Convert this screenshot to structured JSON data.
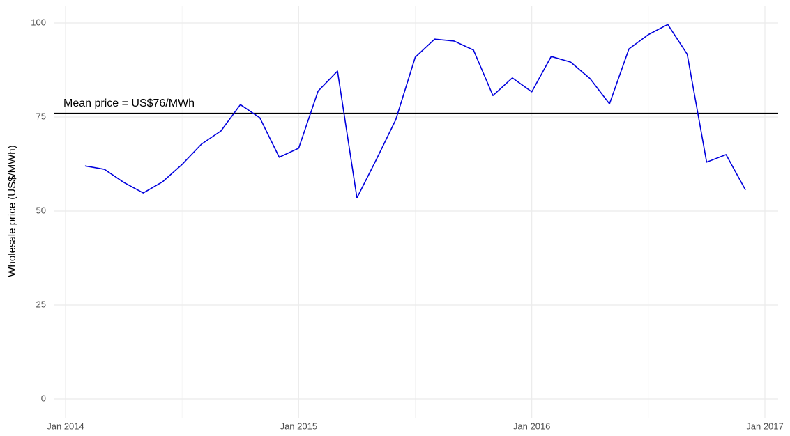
{
  "chart_data": {
    "type": "line",
    "y_label": "Wholesale price (US$/MWh)",
    "x": [
      "2014-02",
      "2014-03",
      "2014-04",
      "2014-05",
      "2014-06",
      "2014-07",
      "2014-08",
      "2014-09",
      "2014-10",
      "2014-11",
      "2014-12",
      "2015-01",
      "2015-02",
      "2015-03",
      "2015-04",
      "2015-05",
      "2015-06",
      "2015-07",
      "2015-08",
      "2015-09",
      "2015-10",
      "2015-11",
      "2015-12",
      "2016-01",
      "2016-02",
      "2016-03",
      "2016-04",
      "2016-05",
      "2016-06",
      "2016-07",
      "2016-08",
      "2016-09",
      "2016-10",
      "2016-11",
      "2016-12"
    ],
    "series": [
      {
        "color": "#0000dd",
        "values": [
          62.0,
          61.1,
          57.6,
          54.8,
          57.8,
          62.4,
          67.8,
          71.3,
          78.3,
          74.8,
          64.3,
          66.7,
          81.9,
          87.2,
          53.5,
          63.7,
          74.3,
          90.9,
          95.7,
          95.2,
          92.8,
          80.7,
          85.4,
          81.7,
          91.1,
          89.6,
          85.2,
          78.5,
          93.1,
          96.9,
          99.6,
          91.7,
          63.0,
          65.0,
          55.6
        ]
      }
    ],
    "hline": {
      "value": 76,
      "label": "Mean price = US$76/MWh",
      "color": "#000000"
    },
    "ylim": [
      0,
      100
    ],
    "yticks": [
      0,
      25,
      50,
      75,
      100
    ],
    "xticks": [
      {
        "value": "2014-01",
        "label": "Jan 2014"
      },
      {
        "value": "2015-01",
        "label": "Jan 2015"
      },
      {
        "value": "2016-01",
        "label": "Jan 2016"
      },
      {
        "value": "2017-01",
        "label": "Jan 2017"
      }
    ],
    "grid": true
  }
}
